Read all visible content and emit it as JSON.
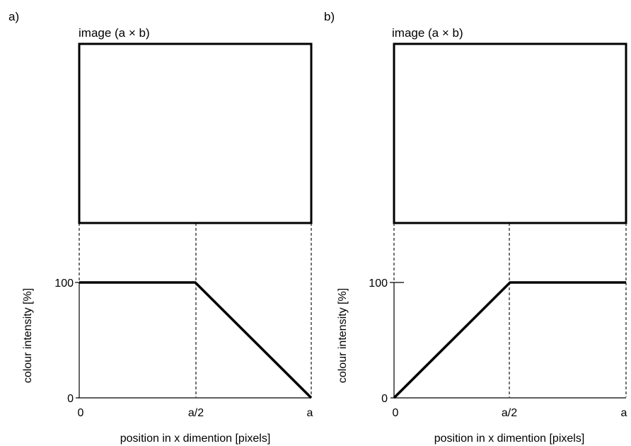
{
  "panels": [
    {
      "id": "a",
      "panel_label": "a)",
      "image_label": "image (a × b)",
      "ylabel": "colour intensity [%]",
      "xlabel": "position in x dimention [pixels]",
      "x_tick_labels": [
        "0",
        "a/2",
        "a"
      ],
      "y_tick_labels": [
        "0",
        "100"
      ],
      "profile": [
        {
          "x": 0,
          "y": 100
        },
        {
          "x": 0.5,
          "y": 100
        },
        {
          "x": 1,
          "y": 0
        }
      ]
    },
    {
      "id": "b",
      "panel_label": "b)",
      "image_label": "image (a × b)",
      "ylabel": "colour intensity [%]",
      "xlabel": "position in x dimention [pixels]",
      "x_tick_labels": [
        "0",
        "a/2",
        "a"
      ],
      "y_tick_labels": [
        "0",
        "100"
      ],
      "profile": [
        {
          "x": 0,
          "y": 0
        },
        {
          "x": 0.5,
          "y": 100
        },
        {
          "x": 1,
          "y": 100
        }
      ]
    }
  ]
}
